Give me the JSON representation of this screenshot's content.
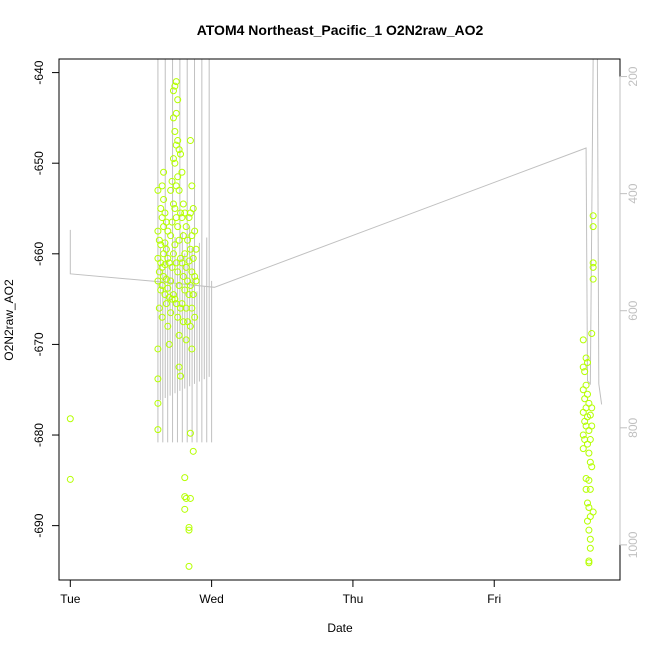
{
  "chart_data": {
    "type": "scatter",
    "title": "ATOM4 Northeast_Pacific_1 O2N2raw_AO2",
    "xlabel": "Date",
    "ylabel": "O2N2raw_AO2",
    "x_ticks": [
      "Tue",
      "Wed",
      "Thu",
      "Fri"
    ],
    "xlim_days": [
      -0.08,
      3.89
    ],
    "ylim": [
      -696,
      -638.5
    ],
    "y_ticks": [
      -640,
      -650,
      -660,
      -670,
      -680,
      -690
    ],
    "y2lim": [
      1060,
      170
    ],
    "y2_ticks": [
      200,
      400,
      600,
      800,
      1000
    ],
    "grid": false,
    "colors": {
      "scatter": "#b5ff00",
      "secondary_line": "#c0c0c0",
      "box": "#000000"
    },
    "secondary_line": [
      [
        0.0,
        462
      ],
      [
        0.0,
        537
      ],
      [
        0.7,
        552
      ],
      [
        1.02,
        560
      ],
      [
        3.65,
        322
      ],
      [
        3.66,
        720
      ],
      [
        3.68,
        725
      ],
      [
        3.7,
        170
      ],
      [
        3.73,
        170
      ],
      [
        3.74,
        725
      ],
      [
        3.76,
        760
      ]
    ],
    "secondary_line_dense_region": {
      "x_range": [
        0.62,
        1.0
      ],
      "top": 170,
      "bottom": 825
    },
    "points": [
      [
        0.0,
        -678.2
      ],
      [
        0.0,
        -684.9
      ],
      [
        0.62,
        -653.0
      ],
      [
        0.62,
        -657.5
      ],
      [
        0.62,
        -660.5
      ],
      [
        0.62,
        -663.0
      ],
      [
        0.62,
        -670.5
      ],
      [
        0.62,
        -673.8
      ],
      [
        0.62,
        -676.5
      ],
      [
        0.62,
        -679.4
      ],
      [
        0.63,
        -658.5
      ],
      [
        0.63,
        -662.0
      ],
      [
        0.63,
        -666.0
      ],
      [
        0.64,
        -655.0
      ],
      [
        0.64,
        -659.0
      ],
      [
        0.64,
        -661.0
      ],
      [
        0.64,
        -664.0
      ],
      [
        0.65,
        -652.5
      ],
      [
        0.65,
        -656.0
      ],
      [
        0.65,
        -661.5
      ],
      [
        0.65,
        -663.5
      ],
      [
        0.65,
        -667.0
      ],
      [
        0.66,
        -651.0
      ],
      [
        0.66,
        -654.0
      ],
      [
        0.66,
        -657.0
      ],
      [
        0.66,
        -660.0
      ],
      [
        0.66,
        -662.5
      ],
      [
        0.67,
        -655.5
      ],
      [
        0.67,
        -658.8
      ],
      [
        0.67,
        -661.2
      ],
      [
        0.67,
        -664.5
      ],
      [
        0.68,
        -656.5
      ],
      [
        0.68,
        -659.5
      ],
      [
        0.68,
        -662.8
      ],
      [
        0.68,
        -665.5
      ],
      [
        0.69,
        -657.5
      ],
      [
        0.69,
        -660.5
      ],
      [
        0.69,
        -663.8
      ],
      [
        0.69,
        -668.0
      ],
      [
        0.7,
        -661.0
      ],
      [
        0.7,
        -664.8
      ],
      [
        0.7,
        -670.0
      ],
      [
        0.71,
        -653.0
      ],
      [
        0.71,
        -658.0
      ],
      [
        0.71,
        -663.0
      ],
      [
        0.71,
        -666.5
      ],
      [
        0.72,
        -652.0
      ],
      [
        0.72,
        -656.5
      ],
      [
        0.72,
        -661.5
      ],
      [
        0.72,
        -665.0
      ],
      [
        0.73,
        -642.0
      ],
      [
        0.73,
        -645.0
      ],
      [
        0.73,
        -649.5
      ],
      [
        0.73,
        -654.5
      ],
      [
        0.73,
        -660.0
      ],
      [
        0.73,
        -664.5
      ],
      [
        0.74,
        -641.5
      ],
      [
        0.74,
        -646.5
      ],
      [
        0.74,
        -650.0
      ],
      [
        0.74,
        -655.0
      ],
      [
        0.74,
        -659.0
      ],
      [
        0.74,
        -665.0
      ],
      [
        0.75,
        -641.0
      ],
      [
        0.75,
        -644.5
      ],
      [
        0.75,
        -648.0
      ],
      [
        0.75,
        -652.5
      ],
      [
        0.75,
        -656.0
      ],
      [
        0.75,
        -661.0
      ],
      [
        0.75,
        -665.5
      ],
      [
        0.76,
        -643.0
      ],
      [
        0.76,
        -647.5
      ],
      [
        0.76,
        -651.5
      ],
      [
        0.76,
        -657.0
      ],
      [
        0.76,
        -662.0
      ],
      [
        0.76,
        -667.0
      ],
      [
        0.77,
        -648.5
      ],
      [
        0.77,
        -653.0
      ],
      [
        0.77,
        -658.5
      ],
      [
        0.77,
        -663.5
      ],
      [
        0.77,
        -669.0
      ],
      [
        0.77,
        -672.5
      ],
      [
        0.78,
        -649.0
      ],
      [
        0.78,
        -655.5
      ],
      [
        0.78,
        -660.5
      ],
      [
        0.78,
        -666.0
      ],
      [
        0.78,
        -673.5
      ],
      [
        0.79,
        -651.0
      ],
      [
        0.79,
        -656.0
      ],
      [
        0.79,
        -661.0
      ],
      [
        0.79,
        -665.5
      ],
      [
        0.8,
        -654.5
      ],
      [
        0.8,
        -658.0
      ],
      [
        0.8,
        -662.5
      ],
      [
        0.8,
        -667.5
      ],
      [
        0.81,
        -655.5
      ],
      [
        0.81,
        -660.0
      ],
      [
        0.81,
        -664.0
      ],
      [
        0.81,
        -684.7
      ],
      [
        0.81,
        -686.8
      ],
      [
        0.81,
        -688.2
      ],
      [
        0.82,
        -657.0
      ],
      [
        0.82,
        -661.5
      ],
      [
        0.82,
        -666.0
      ],
      [
        0.82,
        -669.5
      ],
      [
        0.82,
        -687.0
      ],
      [
        0.83,
        -658.5
      ],
      [
        0.83,
        -663.0
      ],
      [
        0.83,
        -667.5
      ],
      [
        0.84,
        -656.0
      ],
      [
        0.84,
        -660.8
      ],
      [
        0.84,
        -664.5
      ],
      [
        0.84,
        -690.2
      ],
      [
        0.84,
        -690.5
      ],
      [
        0.84,
        -694.5
      ],
      [
        0.85,
        -647.5
      ],
      [
        0.85,
        -655.5
      ],
      [
        0.85,
        -659.5
      ],
      [
        0.85,
        -663.5
      ],
      [
        0.85,
        -668.0
      ],
      [
        0.85,
        -679.8
      ],
      [
        0.85,
        -687.0
      ],
      [
        0.86,
        -652.5
      ],
      [
        0.86,
        -658.0
      ],
      [
        0.86,
        -662.0
      ],
      [
        0.86,
        -666.0
      ],
      [
        0.86,
        -670.5
      ],
      [
        0.87,
        -655.0
      ],
      [
        0.87,
        -660.5
      ],
      [
        0.87,
        -664.5
      ],
      [
        0.87,
        -681.8
      ],
      [
        0.88,
        -657.5
      ],
      [
        0.88,
        -662.5
      ],
      [
        0.88,
        -667.0
      ],
      [
        0.89,
        -659.5
      ],
      [
        0.89,
        -663.0
      ],
      [
        3.63,
        -669.5
      ],
      [
        3.63,
        -672.5
      ],
      [
        3.63,
        -675.0
      ],
      [
        3.63,
        -677.5
      ],
      [
        3.63,
        -680.0
      ],
      [
        3.63,
        -681.5
      ],
      [
        3.64,
        -673.0
      ],
      [
        3.64,
        -676.0
      ],
      [
        3.64,
        -678.5
      ],
      [
        3.64,
        -680.5
      ],
      [
        3.65,
        -671.5
      ],
      [
        3.65,
        -674.5
      ],
      [
        3.65,
        -677.0
      ],
      [
        3.65,
        -679.0
      ],
      [
        3.65,
        -684.8
      ],
      [
        3.65,
        -686.0
      ],
      [
        3.66,
        -672.0
      ],
      [
        3.66,
        -675.5
      ],
      [
        3.66,
        -678.0
      ],
      [
        3.66,
        -681.0
      ],
      [
        3.66,
        -687.5
      ],
      [
        3.66,
        -689.5
      ],
      [
        3.67,
        -676.5
      ],
      [
        3.67,
        -679.5
      ],
      [
        3.67,
        -682.0
      ],
      [
        3.67,
        -685.0
      ],
      [
        3.67,
        -688.0
      ],
      [
        3.67,
        -690.5
      ],
      [
        3.67,
        -693.9
      ],
      [
        3.67,
        -694.1
      ],
      [
        3.68,
        -677.8
      ],
      [
        3.68,
        -680.5
      ],
      [
        3.68,
        -683.0
      ],
      [
        3.68,
        -686.0
      ],
      [
        3.68,
        -689.0
      ],
      [
        3.68,
        -691.5
      ],
      [
        3.68,
        -692.5
      ],
      [
        3.69,
        -668.8
      ],
      [
        3.69,
        -677.0
      ],
      [
        3.69,
        -679.0
      ],
      [
        3.69,
        -683.5
      ],
      [
        3.7,
        -655.8
      ],
      [
        3.7,
        -657.0
      ],
      [
        3.7,
        -661.0
      ],
      [
        3.7,
        -661.5
      ],
      [
        3.7,
        -662.8
      ],
      [
        3.7,
        -688.5
      ]
    ]
  }
}
